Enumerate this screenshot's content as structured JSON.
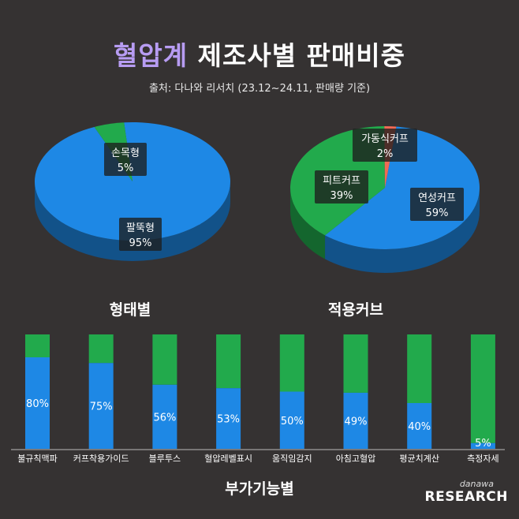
{
  "title": {
    "highlight": "혈압계",
    "rest": "제조사별 판매비중"
  },
  "source": "출처: 다나와 리서치 (23.12~24.11, 판매량 기준)",
  "colors": {
    "background": "#353232",
    "blue": "#1e88e5",
    "green": "#22aa4c",
    "red": "#ef6a55",
    "highlight": "#b79cf2"
  },
  "chart_data": [
    {
      "type": "pie",
      "title": "형태별",
      "slices": [
        {
          "name": "팔뚝형",
          "value": 95,
          "label": "95%",
          "color": "#1e88e5"
        },
        {
          "name": "손목형",
          "value": 5,
          "label": "5%",
          "color": "#22aa4c"
        }
      ]
    },
    {
      "type": "pie",
      "title": "적용커브",
      "slices": [
        {
          "name": "연성커프",
          "value": 59,
          "label": "59%",
          "color": "#1e88e5"
        },
        {
          "name": "피트커프",
          "value": 39,
          "label": "39%",
          "color": "#22aa4c"
        },
        {
          "name": "가동식커프",
          "value": 2,
          "label": "2%",
          "color": "#ef6a55"
        }
      ]
    },
    {
      "type": "bar",
      "title": "부가기능별",
      "stacked": true,
      "ylim": [
        0,
        100
      ],
      "categories": [
        "불규칙맥파",
        "커프착용가이드",
        "블루투스",
        "혈압레벨표시",
        "움직임감지",
        "아침고혈압",
        "평균치계산",
        "측정자세"
      ],
      "values": [
        80,
        75,
        56,
        53,
        50,
        49,
        40,
        5
      ],
      "value_labels": [
        "80%",
        "75%",
        "56%",
        "53%",
        "50%",
        "49%",
        "40%",
        "5%"
      ],
      "colors": {
        "value": "#1e88e5",
        "remainder": "#22aa4c"
      }
    }
  ],
  "brand": {
    "small": "danawa",
    "big": "RESEARCH"
  }
}
